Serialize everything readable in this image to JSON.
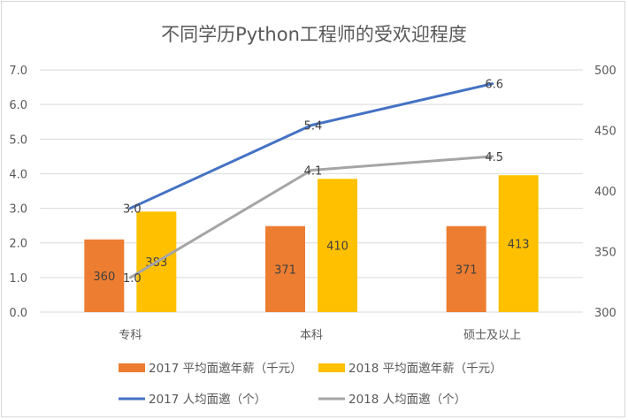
{
  "chart_data": {
    "type": "bar",
    "title": "不同学历Python工程师的受欢迎程度",
    "categories": [
      "专科",
      "本科",
      "硕士及以上"
    ],
    "y_left": {
      "ylim": [
        0,
        7
      ],
      "ticks": [
        "0.0",
        "1.0",
        "2.0",
        "3.0",
        "4.0",
        "5.0",
        "6.0",
        "7.0"
      ],
      "tick_values": [
        0,
        1,
        2,
        3,
        4,
        5,
        6,
        7
      ]
    },
    "y_right": {
      "ylim": [
        300,
        500
      ],
      "ticks": [
        "300",
        "350",
        "400",
        "450",
        "500"
      ],
      "tick_values": [
        300,
        350,
        400,
        450,
        500
      ]
    },
    "grid": true,
    "legend_position": "bottom",
    "series": [
      {
        "name": "2017 平均面邀年薪（千元）",
        "kind": "bar",
        "axis": "right",
        "color": "#ED7D31",
        "values": [
          360,
          371,
          371
        ],
        "labels": [
          "360",
          "371",
          "371"
        ]
      },
      {
        "name": "2018 平均面邀年薪（千元）",
        "kind": "bar",
        "axis": "right",
        "color": "#FFC000",
        "values": [
          383,
          410,
          413
        ],
        "labels": [
          "383",
          "410",
          "413"
        ]
      },
      {
        "name": "2017 人均面邀（个）",
        "kind": "line",
        "axis": "left",
        "color": "#4472C4",
        "values": [
          3.0,
          5.4,
          6.6
        ],
        "labels": [
          "3.0",
          "5.4",
          "6.6"
        ]
      },
      {
        "name": "2018 人均面邀（个）",
        "kind": "line",
        "axis": "left",
        "color": "#A5A5A5",
        "values": [
          1.0,
          4.1,
          4.5
        ],
        "labels": [
          "1.0",
          "4.1",
          "4.5"
        ]
      }
    ],
    "legend": [
      {
        "label": "2017 平均面邀年薪（千元）",
        "swatch": "bar",
        "color": "#ED7D31"
      },
      {
        "label": "2018 平均面邀年薪（千元）",
        "swatch": "bar",
        "color": "#FFC000"
      },
      {
        "label": "2017 人均面邀（个）",
        "swatch": "line",
        "color": "#4472C4"
      },
      {
        "label": "2018 人均面邀（个）",
        "swatch": "line",
        "color": "#A5A5A5"
      }
    ]
  }
}
